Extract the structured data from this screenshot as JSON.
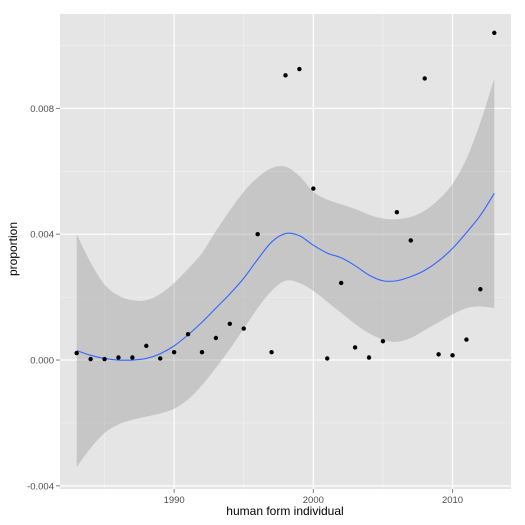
{
  "chart_data": {
    "type": "scatter",
    "title": "",
    "xlabel": "human form individual",
    "ylabel": "proportion",
    "xlim": [
      1981.8,
      2014.2
    ],
    "ylim": [
      -0.0041,
      0.011
    ],
    "x_ticks": [
      1990,
      2000,
      2010
    ],
    "x_tick_labels": [
      "1990",
      "2000",
      "2010"
    ],
    "y_ticks": [
      -0.004,
      0.0,
      0.004,
      0.008
    ],
    "y_tick_labels": [
      "-0.004",
      "0.000",
      "0.004",
      "0.008"
    ],
    "grid": true,
    "legend": "none",
    "colors": {
      "panel_bg": "#e5e5e5",
      "grid_major": "#ffffff",
      "grid_minor": "#f2f2f2",
      "points": "#000000",
      "smooth_line": "#3366ff",
      "ribbon": "#999999"
    },
    "points": [
      {
        "x": 1983,
        "y": 0.00022
      },
      {
        "x": 1984,
        "y": 3e-05
      },
      {
        "x": 1985,
        "y": 3e-05
      },
      {
        "x": 1986,
        "y": 8e-05
      },
      {
        "x": 1987,
        "y": 8e-05
      },
      {
        "x": 1988,
        "y": 0.00045
      },
      {
        "x": 1989,
        "y": 5e-05
      },
      {
        "x": 1990,
        "y": 0.00025
      },
      {
        "x": 1991,
        "y": 0.00082
      },
      {
        "x": 1992,
        "y": 0.00025
      },
      {
        "x": 1993,
        "y": 0.0007
      },
      {
        "x": 1994,
        "y": 0.00115
      },
      {
        "x": 1995,
        "y": 0.001
      },
      {
        "x": 1996,
        "y": 0.004
      },
      {
        "x": 1997,
        "y": 0.00025
      },
      {
        "x": 1998,
        "y": 0.00905
      },
      {
        "x": 1999,
        "y": 0.00925
      },
      {
        "x": 2000,
        "y": 0.00545
      },
      {
        "x": 2001,
        "y": 5e-05
      },
      {
        "x": 2002,
        "y": 0.00245
      },
      {
        "x": 2003,
        "y": 0.0004
      },
      {
        "x": 2004,
        "y": 8e-05
      },
      {
        "x": 2005,
        "y": 0.0006
      },
      {
        "x": 2006,
        "y": 0.0047
      },
      {
        "x": 2007,
        "y": 0.0038
      },
      {
        "x": 2008,
        "y": 0.00895
      },
      {
        "x": 2009,
        "y": 0.00018
      },
      {
        "x": 2010,
        "y": 0.00015
      },
      {
        "x": 2011,
        "y": 0.00065
      },
      {
        "x": 2012,
        "y": 0.00225
      },
      {
        "x": 2013,
        "y": 0.0104
      }
    ],
    "smooth": {
      "x": [
        1983,
        1984,
        1985,
        1986,
        1987,
        1988,
        1989,
        1990,
        1991,
        1992,
        1993,
        1994,
        1995,
        1996,
        1997,
        1998,
        1999,
        2000,
        2001,
        2002,
        2003,
        2004,
        2005,
        2006,
        2007,
        2008,
        2009,
        2010,
        2011,
        2012,
        2013
      ],
      "y": [
        0.0003,
        0.00015,
        5e-05,
        0.0,
        0.0,
        5e-05,
        0.0002,
        0.00045,
        0.0008,
        0.0012,
        0.00165,
        0.0021,
        0.0026,
        0.0032,
        0.00375,
        0.00402,
        0.00395,
        0.00365,
        0.0034,
        0.00325,
        0.003,
        0.0027,
        0.00252,
        0.00252,
        0.00265,
        0.00285,
        0.00315,
        0.00355,
        0.00405,
        0.0046,
        0.0053
      ],
      "lower": [
        -0.0034,
        -0.0028,
        -0.00232,
        -0.00205,
        -0.0019,
        -0.0018,
        -0.0017,
        -0.00155,
        -0.00125,
        -0.0008,
        -0.00025,
        0.00035,
        0.001,
        0.00165,
        0.0022,
        0.00252,
        0.00245,
        0.0022,
        0.00185,
        0.0015,
        0.00115,
        0.00085,
        0.00065,
        0.00058,
        0.0007,
        0.00095,
        0.0012,
        0.00145,
        0.00165,
        0.0017,
        0.00165
      ],
      "upper": [
        0.004,
        0.0031,
        0.0024,
        0.00205,
        0.0019,
        0.0019,
        0.0021,
        0.00245,
        0.0029,
        0.0034,
        0.0041,
        0.00475,
        0.00535,
        0.0058,
        0.0061,
        0.00615,
        0.00585,
        0.00535,
        0.0051,
        0.00495,
        0.0048,
        0.00462,
        0.0045,
        0.00448,
        0.00455,
        0.00475,
        0.0051,
        0.0056,
        0.0064,
        0.00755,
        0.00895
      ]
    }
  }
}
